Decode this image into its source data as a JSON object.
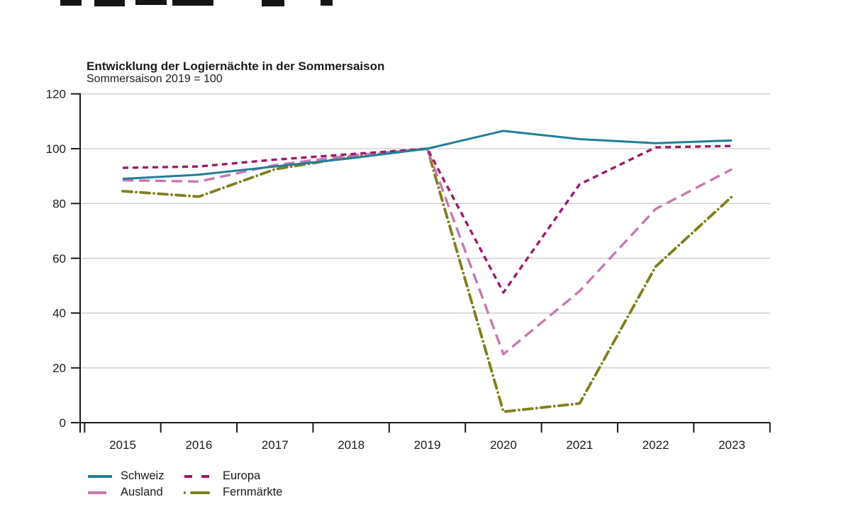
{
  "chart_data": {
    "type": "line",
    "title": "Entwicklung der Logiernächte in der Sommersaison",
    "subtitle": "Sommersaison 2019 = 100",
    "x": [
      2015,
      2016,
      2017,
      2018,
      2019,
      2020,
      2021,
      2022,
      2023
    ],
    "xlabel": "",
    "ylabel": "",
    "ylim": [
      0,
      120
    ],
    "ytick_step": 20,
    "yticks": [
      0,
      20,
      40,
      60,
      80,
      100,
      120
    ],
    "grid": true,
    "legend_position": "bottom-left",
    "series": [
      {
        "name": "Schweiz",
        "color": "#1f7e9b",
        "style": "solid",
        "values": [
          89,
          90.5,
          93.5,
          96.5,
          100,
          106.5,
          103.5,
          102,
          103
        ]
      },
      {
        "name": "Europa",
        "color": "#a0186a",
        "style": "short-dash",
        "values": [
          93,
          93.5,
          96,
          98,
          100,
          47.5,
          87,
          100.5,
          101
        ]
      },
      {
        "name": "Ausland",
        "color": "#c878b0",
        "style": "long-dash",
        "values": [
          88.5,
          88,
          94,
          97.5,
          100,
          25,
          48,
          78,
          92.5
        ]
      },
      {
        "name": "Fernmärkte",
        "color": "#7e7f1b",
        "style": "dash-dot",
        "values": [
          84.5,
          82.5,
          92.5,
          97,
          100,
          4,
          7,
          57,
          82.5
        ]
      }
    ],
    "colors": {
      "axis": "#1a1a1a",
      "gridline": "#cbcbcb",
      "background": "#ffffff"
    }
  }
}
